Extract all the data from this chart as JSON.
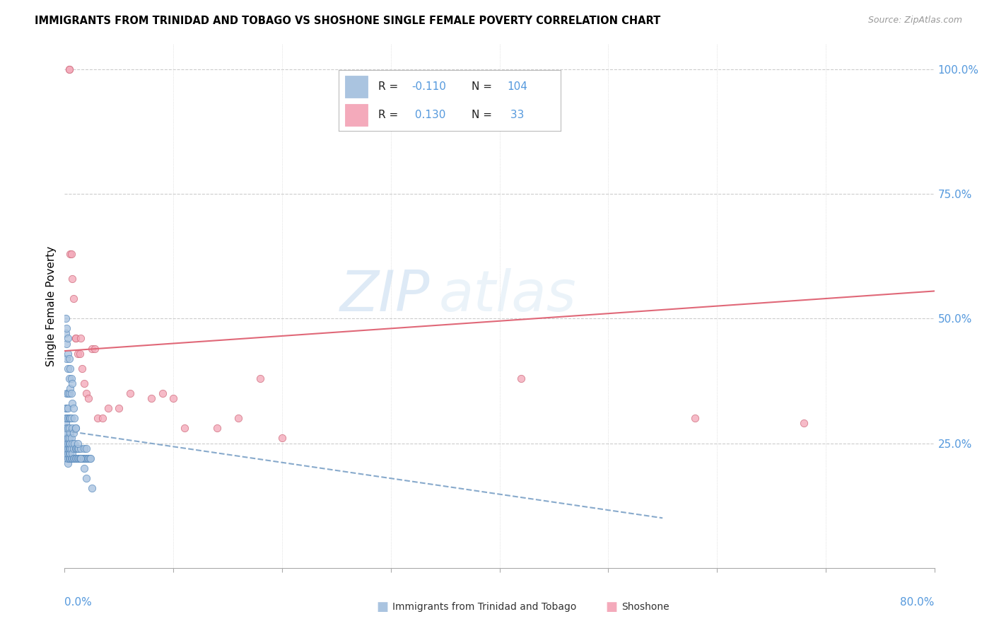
{
  "title": "IMMIGRANTS FROM TRINIDAD AND TOBAGO VS SHOSHONE SINGLE FEMALE POVERTY CORRELATION CHART",
  "source": "Source: ZipAtlas.com",
  "ylabel": "Single Female Poverty",
  "blue_color": "#aac4e0",
  "blue_edge_color": "#5588bb",
  "pink_color": "#f4aabb",
  "pink_edge_color": "#cc6677",
  "blue_trend_color": "#88aacc",
  "pink_trend_color": "#e06878",
  "watermark_zip": "ZIP",
  "watermark_atlas": "atlas",
  "grid_color": "#cccccc",
  "right_tick_color": "#5599dd",
  "blue_trend_start_x": 0.0,
  "blue_trend_start_y": 0.275,
  "blue_trend_end_x": 0.55,
  "blue_trend_end_y": 0.1,
  "pink_trend_start_x": 0.0,
  "pink_trend_start_y": 0.435,
  "pink_trend_end_x": 0.8,
  "pink_trend_end_y": 0.555,
  "xlim": [
    0.0,
    0.8
  ],
  "ylim": [
    0.0,
    1.05
  ],
  "blue_x": [
    0.001,
    0.001,
    0.001,
    0.001,
    0.001,
    0.001,
    0.001,
    0.001,
    0.001,
    0.001,
    0.002,
    0.002,
    0.002,
    0.002,
    0.002,
    0.002,
    0.002,
    0.002,
    0.002,
    0.002,
    0.003,
    0.003,
    0.003,
    0.003,
    0.003,
    0.003,
    0.003,
    0.003,
    0.003,
    0.003,
    0.004,
    0.004,
    0.004,
    0.004,
    0.004,
    0.004,
    0.004,
    0.004,
    0.005,
    0.005,
    0.005,
    0.005,
    0.005,
    0.005,
    0.006,
    0.006,
    0.006,
    0.006,
    0.007,
    0.007,
    0.007,
    0.007,
    0.008,
    0.008,
    0.008,
    0.009,
    0.009,
    0.01,
    0.01,
    0.01,
    0.011,
    0.011,
    0.012,
    0.012,
    0.013,
    0.013,
    0.014,
    0.015,
    0.015,
    0.016,
    0.017,
    0.018,
    0.018,
    0.019,
    0.02,
    0.02,
    0.021,
    0.022,
    0.023,
    0.024,
    0.001,
    0.001,
    0.002,
    0.002,
    0.002,
    0.003,
    0.003,
    0.003,
    0.004,
    0.004,
    0.005,
    0.005,
    0.006,
    0.006,
    0.007,
    0.007,
    0.008,
    0.009,
    0.01,
    0.012,
    0.015,
    0.018,
    0.02,
    0.025
  ],
  "blue_y": [
    0.23,
    0.24,
    0.25,
    0.25,
    0.26,
    0.27,
    0.28,
    0.29,
    0.3,
    0.32,
    0.22,
    0.23,
    0.24,
    0.25,
    0.26,
    0.27,
    0.28,
    0.3,
    0.32,
    0.35,
    0.21,
    0.22,
    0.23,
    0.24,
    0.25,
    0.26,
    0.28,
    0.3,
    0.32,
    0.35,
    0.22,
    0.23,
    0.24,
    0.25,
    0.26,
    0.28,
    0.3,
    0.35,
    0.22,
    0.23,
    0.24,
    0.25,
    0.27,
    0.3,
    0.22,
    0.24,
    0.26,
    0.3,
    0.22,
    0.23,
    0.25,
    0.28,
    0.22,
    0.24,
    0.27,
    0.22,
    0.25,
    0.22,
    0.24,
    0.28,
    0.22,
    0.24,
    0.22,
    0.24,
    0.22,
    0.24,
    0.22,
    0.22,
    0.24,
    0.22,
    0.22,
    0.22,
    0.24,
    0.22,
    0.22,
    0.24,
    0.22,
    0.22,
    0.22,
    0.22,
    0.47,
    0.5,
    0.42,
    0.45,
    0.48,
    0.4,
    0.43,
    0.46,
    0.38,
    0.42,
    0.36,
    0.4,
    0.35,
    0.38,
    0.33,
    0.37,
    0.32,
    0.3,
    0.28,
    0.25,
    0.22,
    0.2,
    0.18,
    0.16
  ],
  "pink_x": [
    0.004,
    0.004,
    0.005,
    0.006,
    0.007,
    0.008,
    0.01,
    0.01,
    0.012,
    0.014,
    0.015,
    0.016,
    0.018,
    0.02,
    0.022,
    0.025,
    0.028,
    0.03,
    0.035,
    0.04,
    0.05,
    0.06,
    0.08,
    0.09,
    0.1,
    0.11,
    0.14,
    0.16,
    0.18,
    0.2,
    0.42,
    0.58,
    0.68
  ],
  "pink_y": [
    1.0,
    1.0,
    0.63,
    0.63,
    0.58,
    0.54,
    0.46,
    0.46,
    0.43,
    0.43,
    0.46,
    0.4,
    0.37,
    0.35,
    0.34,
    0.44,
    0.44,
    0.3,
    0.3,
    0.32,
    0.32,
    0.35,
    0.34,
    0.35,
    0.34,
    0.28,
    0.28,
    0.3,
    0.38,
    0.26,
    0.38,
    0.3,
    0.29
  ]
}
